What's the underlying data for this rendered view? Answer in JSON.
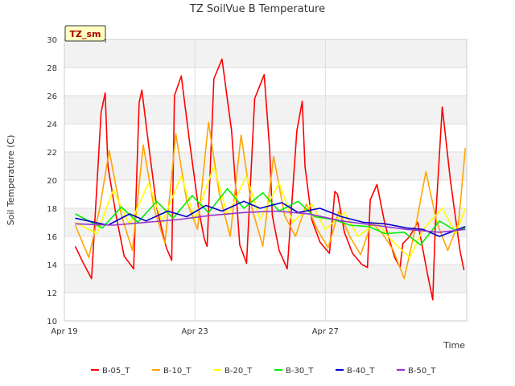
{
  "chart_data": {
    "type": "line",
    "title": "TZ SoilVue B Temperature",
    "xlabel": "Time",
    "ylabel": "Soil Temperature (C)",
    "badge": "TZ_sm",
    "ylim": [
      10,
      30
    ],
    "yticks": [
      10,
      12,
      14,
      16,
      18,
      20,
      22,
      24,
      26,
      28,
      30
    ],
    "xlim": [
      "2024-04-19",
      "2024-05-01T08:00"
    ],
    "xticks": [
      {
        "label": "Apr 19",
        "value": "2024-04-19"
      },
      {
        "label": "Apr 23",
        "value": "2024-04-23"
      },
      {
        "label": "Apr 27",
        "value": "2024-04-27"
      }
    ],
    "grid": true,
    "legend_position": "bottom",
    "series": [
      {
        "name": "B-05_T",
        "color": "#ff0000",
        "x": [
          "2024-04-19T08:00",
          "2024-04-19T14:00",
          "2024-04-19T20:00",
          "2024-04-20T03:00",
          "2024-04-20T06:00",
          "2024-04-20T08:00",
          "2024-04-20T14:00",
          "2024-04-20T20:00",
          "2024-04-21T03:00",
          "2024-04-21T07:00",
          "2024-04-21T09:00",
          "2024-04-21T14:00",
          "2024-04-21T20:00",
          "2024-04-22T03:00",
          "2024-04-22T07:00",
          "2024-04-22T09:00",
          "2024-04-22T14:00",
          "2024-04-22T20:00",
          "2024-04-23T03:00",
          "2024-04-23T07:00",
          "2024-04-23T09:00",
          "2024-04-23T14:00",
          "2024-04-23T20:00",
          "2024-04-24T03:00",
          "2024-04-24T07:00",
          "2024-04-24T09:00",
          "2024-04-24T14:00",
          "2024-04-24T20:00",
          "2024-04-25T03:00",
          "2024-04-25T07:00",
          "2024-04-25T09:00",
          "2024-04-25T14:00",
          "2024-04-25T20:00",
          "2024-04-26T03:00",
          "2024-04-26T07:00",
          "2024-04-26T09:00",
          "2024-04-26T14:00",
          "2024-04-26T20:00",
          "2024-04-27T03:00",
          "2024-04-27T07:00",
          "2024-04-27T09:00",
          "2024-04-27T14:00",
          "2024-04-27T20:00",
          "2024-04-28T03:00",
          "2024-04-28T07:00",
          "2024-04-28T09:00",
          "2024-04-28T14:00",
          "2024-04-28T20:00",
          "2024-04-29T03:00",
          "2024-04-29T07:00",
          "2024-04-29T09:00",
          "2024-04-29T14:00",
          "2024-04-29T20:00",
          "2024-04-30T03:00",
          "2024-04-30T07:00",
          "2024-04-30T09:00",
          "2024-04-30T14:00",
          "2024-04-30T20:00",
          "2024-05-01T03:00",
          "2024-05-01T06:00"
        ],
        "y": [
          15.3,
          14.1,
          13.0,
          24.8,
          26.2,
          21.0,
          17.5,
          14.6,
          13.7,
          25.5,
          26.4,
          22.5,
          18.0,
          15.2,
          14.3,
          26.0,
          27.4,
          22.8,
          17.8,
          15.8,
          15.3,
          27.2,
          28.6,
          23.5,
          18.2,
          15.4,
          14.1,
          25.8,
          27.5,
          22.2,
          17.5,
          15.0,
          13.7,
          23.5,
          25.6,
          21.0,
          17.2,
          15.6,
          14.8,
          19.2,
          19.0,
          16.3,
          14.8,
          14.0,
          13.8,
          18.6,
          19.7,
          16.8,
          14.5,
          13.8,
          15.5,
          16.0,
          17.0,
          13.4,
          11.5,
          17.0,
          25.2,
          20.0,
          15.0,
          13.6
        ]
      },
      {
        "name": "B-10_T",
        "color": "#ffa500",
        "x": [
          "2024-04-19T08:00",
          "2024-04-19T18:00",
          "2024-04-20T02:00",
          "2024-04-20T09:00",
          "2024-04-20T18:00",
          "2024-04-21T02:00",
          "2024-04-21T10:00",
          "2024-04-21T18:00",
          "2024-04-22T02:00",
          "2024-04-22T10:00",
          "2024-04-22T18:00",
          "2024-04-23T02:00",
          "2024-04-23T10:00",
          "2024-04-23T18:00",
          "2024-04-24T02:00",
          "2024-04-24T10:00",
          "2024-04-24T18:00",
          "2024-04-25T02:00",
          "2024-04-25T10:00",
          "2024-04-25T18:00",
          "2024-04-26T02:00",
          "2024-04-26T10:00",
          "2024-04-26T18:00",
          "2024-04-27T02:00",
          "2024-04-27T10:00",
          "2024-04-27T18:00",
          "2024-04-28T02:00",
          "2024-04-28T10:00",
          "2024-04-28T18:00",
          "2024-04-29T02:00",
          "2024-04-29T10:00",
          "2024-04-29T18:00",
          "2024-04-30T02:00",
          "2024-04-30T10:00",
          "2024-04-30T18:00",
          "2024-05-01T02:00",
          "2024-05-01T07:00"
        ],
        "y": [
          16.8,
          14.5,
          18.0,
          22.1,
          17.5,
          15.0,
          22.5,
          18.0,
          15.5,
          23.3,
          18.5,
          16.5,
          24.1,
          19.0,
          16.0,
          23.2,
          18.0,
          15.3,
          21.7,
          17.5,
          16.0,
          18.3,
          16.5,
          15.2,
          17.8,
          16.0,
          14.7,
          17.0,
          16.2,
          15.0,
          13.0,
          16.5,
          20.6,
          17.0,
          15.0,
          17.0,
          22.3
        ]
      },
      {
        "name": "B-20_T",
        "color": "#ffff00",
        "x": [
          "2024-04-19T08:00",
          "2024-04-20T00:00",
          "2024-04-20T12:00",
          "2024-04-21T00:00",
          "2024-04-21T14:00",
          "2024-04-22T00:00",
          "2024-04-22T14:00",
          "2024-04-23T00:00",
          "2024-04-23T14:00",
          "2024-04-24T00:00",
          "2024-04-24T14:00",
          "2024-04-25T00:00",
          "2024-04-25T14:00",
          "2024-04-26T00:00",
          "2024-04-26T14:00",
          "2024-04-27T00:00",
          "2024-04-27T14:00",
          "2024-04-28T00:00",
          "2024-04-28T14:00",
          "2024-04-29T00:00",
          "2024-04-29T14:00",
          "2024-04-30T00:00",
          "2024-04-30T14:00",
          "2024-05-01T00:00",
          "2024-05-01T07:00"
        ],
        "y": [
          17.0,
          16.2,
          19.3,
          16.8,
          19.8,
          17.0,
          20.3,
          17.2,
          21.0,
          17.5,
          20.3,
          17.2,
          19.8,
          17.0,
          18.3,
          16.5,
          17.7,
          16.0,
          17.0,
          15.8,
          14.5,
          16.5,
          18.0,
          16.2,
          18.0
        ]
      },
      {
        "name": "B-30_T",
        "color": "#00ee00",
        "x": [
          "2024-04-19T08:00",
          "2024-04-20T04:00",
          "2024-04-20T18:00",
          "2024-04-21T06:00",
          "2024-04-21T20:00",
          "2024-04-22T08:00",
          "2024-04-22T22:00",
          "2024-04-23T10:00",
          "2024-04-24T00:00",
          "2024-04-24T12:00",
          "2024-04-25T02:00",
          "2024-04-25T14:00",
          "2024-04-26T04:00",
          "2024-04-26T16:00",
          "2024-04-27T06:00",
          "2024-04-27T18:00",
          "2024-04-28T08:00",
          "2024-04-28T20:00",
          "2024-04-29T10:00",
          "2024-04-29T22:00",
          "2024-04-30T12:00",
          "2024-05-01T00:00",
          "2024-05-01T07:00"
        ],
        "y": [
          17.6,
          16.6,
          18.1,
          17.0,
          18.5,
          17.3,
          18.9,
          17.7,
          19.4,
          18.0,
          19.1,
          17.8,
          18.5,
          17.4,
          17.2,
          16.8,
          16.7,
          16.2,
          16.3,
          15.4,
          17.1,
          16.4,
          16.6
        ]
      },
      {
        "name": "B-40_T",
        "color": "#0000cc",
        "x": [
          "2024-04-19T08:00",
          "2024-04-20T08:00",
          "2024-04-21T00:00",
          "2024-04-21T12:00",
          "2024-04-22T04:00",
          "2024-04-22T18:00",
          "2024-04-23T08:00",
          "2024-04-23T20:00",
          "2024-04-24T12:00",
          "2024-04-25T00:00",
          "2024-04-25T16:00",
          "2024-04-26T04:00",
          "2024-04-26T20:00",
          "2024-04-27T12:00",
          "2024-04-28T04:00",
          "2024-04-28T20:00",
          "2024-04-29T12:00",
          "2024-04-30T00:00",
          "2024-04-30T12:00",
          "2024-05-01T07:00"
        ],
        "y": [
          17.3,
          16.8,
          17.6,
          17.1,
          17.8,
          17.4,
          18.2,
          17.8,
          18.5,
          18.0,
          18.4,
          17.7,
          18.0,
          17.4,
          17.0,
          16.9,
          16.6,
          16.5,
          16.0,
          16.7
        ]
      },
      {
        "name": "B-50_T",
        "color": "#9932cc",
        "x": [
          "2024-04-19T08:00",
          "2024-04-20T12:00",
          "2024-04-21T12:00",
          "2024-04-22T12:00",
          "2024-04-23T12:00",
          "2024-04-24T12:00",
          "2024-04-25T12:00",
          "2024-04-26T12:00",
          "2024-04-27T12:00",
          "2024-04-28T12:00",
          "2024-04-29T12:00",
          "2024-04-30T12:00",
          "2024-05-01T07:00"
        ],
        "y": [
          16.9,
          16.8,
          17.0,
          17.2,
          17.5,
          17.7,
          17.8,
          17.6,
          17.1,
          16.8,
          16.5,
          16.3,
          16.5
        ]
      }
    ]
  }
}
